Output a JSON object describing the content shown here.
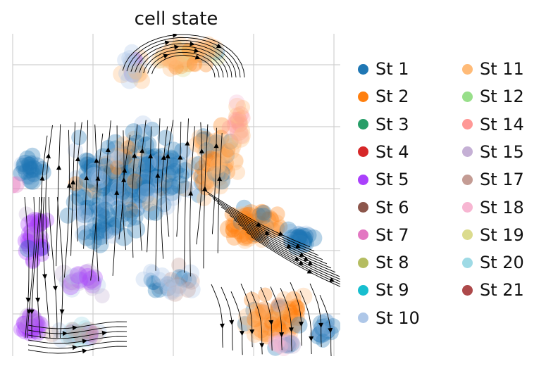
{
  "chart_data": {
    "type": "scatter",
    "title": "cell state",
    "xlabel": "",
    "ylabel": "",
    "grid": true,
    "legend_position": "right",
    "overlay": "velocity streamlines with arrowheads",
    "series": [
      {
        "name": "St 1",
        "color": "#1f77b4",
        "prevalence": "dominant"
      },
      {
        "name": "St 2",
        "color": "#ff7f0e",
        "prevalence": "high"
      },
      {
        "name": "St 3",
        "color": "#279e68",
        "prevalence": "rare"
      },
      {
        "name": "St 4",
        "color": "#d62728",
        "prevalence": "rare"
      },
      {
        "name": "St 5",
        "color": "#aa40fc",
        "prevalence": "medium"
      },
      {
        "name": "St 6",
        "color": "#8c564b",
        "prevalence": "rare"
      },
      {
        "name": "St 7",
        "color": "#e377c2",
        "prevalence": "low"
      },
      {
        "name": "St 8",
        "color": "#b5bd61",
        "prevalence": "rare"
      },
      {
        "name": "St 9",
        "color": "#17becf",
        "prevalence": "rare"
      },
      {
        "name": "St 10",
        "color": "#aec7e8",
        "prevalence": "medium"
      },
      {
        "name": "St 11",
        "color": "#ffbb78",
        "prevalence": "high"
      },
      {
        "name": "St 12",
        "color": "#98df8a",
        "prevalence": "rare"
      },
      {
        "name": "St 14",
        "color": "#ff9896",
        "prevalence": "rare"
      },
      {
        "name": "St 15",
        "color": "#c5b0d5",
        "prevalence": "low"
      },
      {
        "name": "St 17",
        "color": "#c49c94",
        "prevalence": "low"
      },
      {
        "name": "St 18",
        "color": "#f7b6d2",
        "prevalence": "low"
      },
      {
        "name": "St 19",
        "color": "#dbdb8d",
        "prevalence": "low"
      },
      {
        "name": "St 20",
        "color": "#9edae5",
        "prevalence": "low"
      },
      {
        "name": "St 21",
        "color": "#ad494a",
        "prevalence": "rare"
      }
    ]
  }
}
